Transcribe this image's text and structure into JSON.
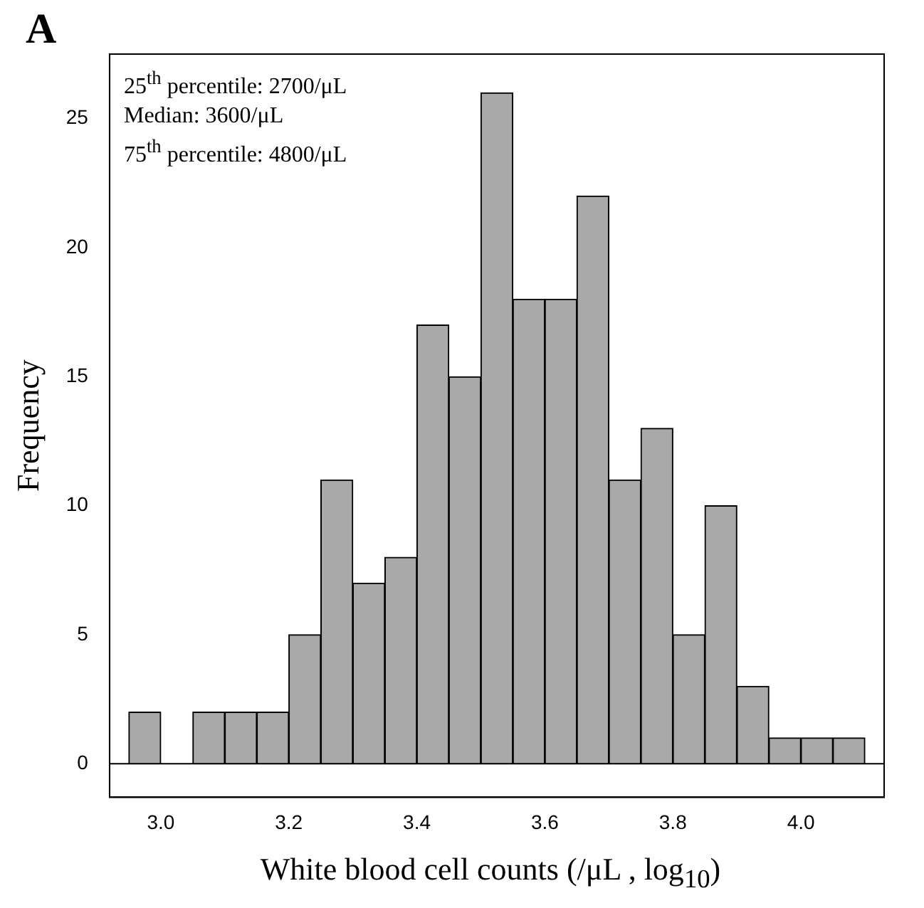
{
  "chart_data": {
    "type": "histogram",
    "title": "A",
    "xlabel": "White blood cell counts (/μL , log$_{10}$)",
    "ylabel": "Frequency",
    "annotations": [
      "25$^{th}$ percentile: 2700/μL",
      "Median: 3600/μL",
      "75$^{th}$ percentile: 4800/μL"
    ],
    "bins": [
      2.95,
      3.0,
      3.05,
      3.1,
      3.15,
      3.2,
      3.25,
      3.3,
      3.35,
      3.4,
      3.45,
      3.5,
      3.55,
      3.6,
      3.65,
      3.7,
      3.75,
      3.8,
      3.85,
      3.9,
      3.95,
      4.0,
      4.05,
      4.1
    ],
    "values": [
      2,
      0,
      2,
      2,
      2,
      5,
      11,
      7,
      8,
      17,
      15,
      26,
      18,
      18,
      22,
      11,
      13,
      5,
      10,
      3,
      1,
      1,
      1
    ],
    "color": "#a9a9a9",
    "xlim": [
      2.92,
      4.13
    ],
    "xticks": [
      {
        "value": 3.0,
        "label": "3.0"
      },
      {
        "value": 3.2,
        "label": "3.2"
      },
      {
        "value": 3.4,
        "label": "3.4"
      },
      {
        "value": 3.6,
        "label": "3.6"
      },
      {
        "value": 3.8,
        "label": "3.8"
      },
      {
        "value": 4.0,
        "label": "4.0"
      }
    ],
    "ylim": [
      -1.3,
      27.5
    ],
    "yticks": [
      0,
      5,
      10,
      15,
      20,
      25
    ],
    "ref_lines": [
      {
        "axis": "y",
        "value": 0
      }
    ],
    "grid": false,
    "legend": false
  }
}
